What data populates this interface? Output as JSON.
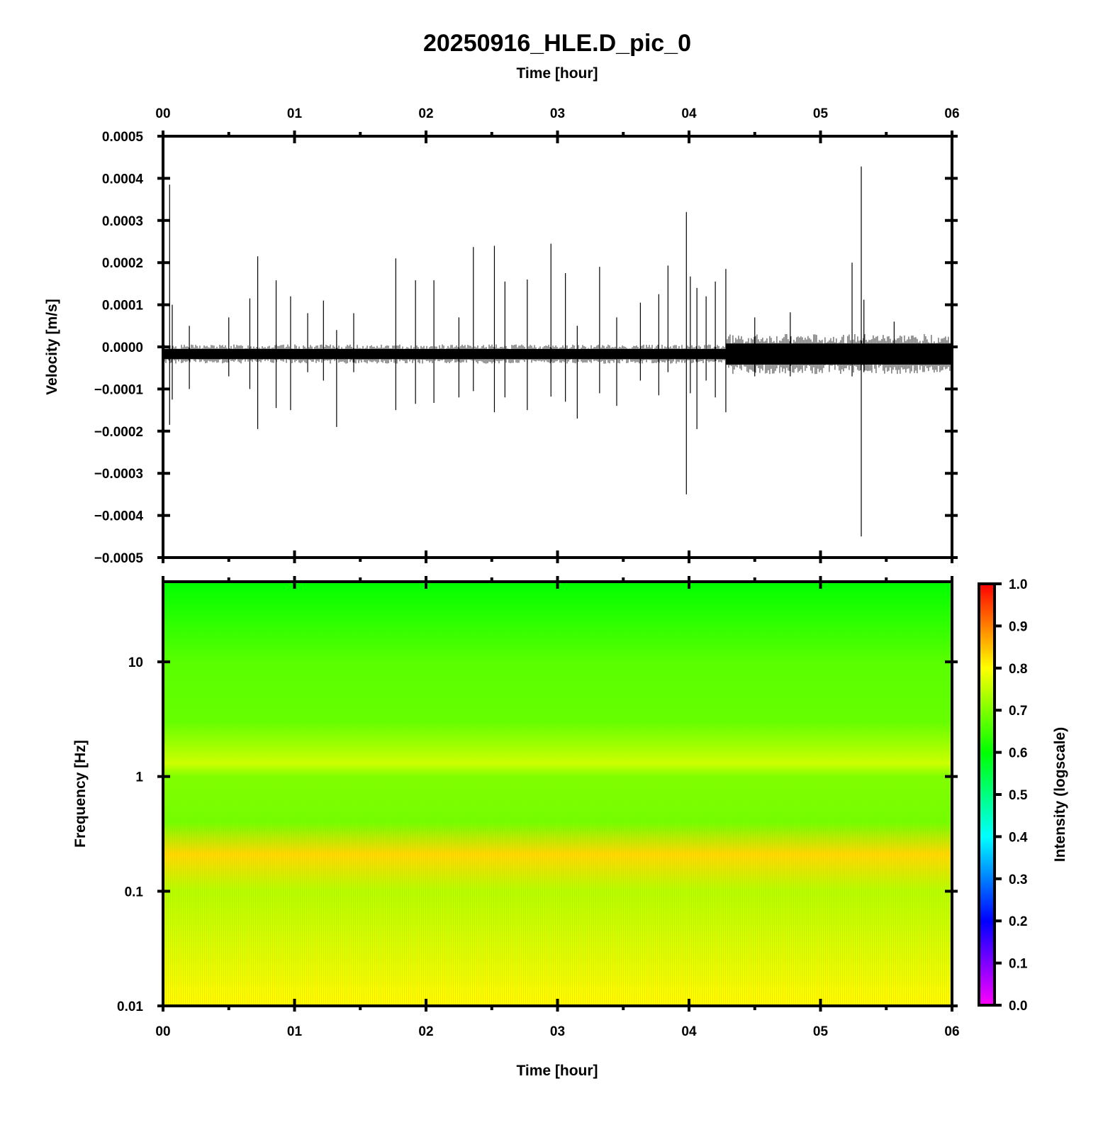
{
  "chart_data": [
    {
      "type": "line",
      "title": "20250916_HLE.D_pic_0",
      "xlabel": "Time [hour]",
      "ylabel": "Velocity [m/s]",
      "xlim": [
        0,
        6
      ],
      "ylim": [
        -0.0005,
        0.0005
      ],
      "x_ticks": [
        "00",
        "01",
        "02",
        "03",
        "04",
        "05",
        "06"
      ],
      "y_ticks": [
        "0.0005",
        "0.0004",
        "0.0003",
        "0.0002",
        "0.0001",
        "0.0000",
        "−0.0001",
        "−0.0002",
        "−0.0003",
        "−0.0004",
        "−0.0005"
      ],
      "baseline": -1.7e-05,
      "noise_envelope": [
        {
          "from_hour": 0.0,
          "to_hour": 4.28,
          "amplitude": 1.2e-05
        },
        {
          "from_hour": 4.28,
          "to_hour": 6.0,
          "amplitude": 2.5e-05
        }
      ],
      "spikes": [
        {
          "t": 0.05,
          "max": 0.000385,
          "min": -0.000185
        },
        {
          "t": 0.07,
          "max": 0.0001,
          "min": -0.000125
        },
        {
          "t": 0.2,
          "max": 5e-05,
          "min": -0.0001
        },
        {
          "t": 0.5,
          "max": 7e-05,
          "min": -7e-05
        },
        {
          "t": 0.66,
          "max": 0.000115,
          "min": -0.0001
        },
        {
          "t": 0.72,
          "max": 0.000215,
          "min": -0.000195
        },
        {
          "t": 0.86,
          "max": 0.000158,
          "min": -0.000145
        },
        {
          "t": 0.97,
          "max": 0.00012,
          "min": -0.00015
        },
        {
          "t": 1.1,
          "max": 8e-05,
          "min": -6e-05
        },
        {
          "t": 1.22,
          "max": 0.00011,
          "min": -8e-05
        },
        {
          "t": 1.32,
          "max": 4e-05,
          "min": -0.00019
        },
        {
          "t": 1.45,
          "max": 8e-05,
          "min": -6e-05
        },
        {
          "t": 1.77,
          "max": 0.00021,
          "min": -0.00015
        },
        {
          "t": 1.92,
          "max": 0.000158,
          "min": -0.000135
        },
        {
          "t": 2.06,
          "max": 0.000158,
          "min": -0.000133
        },
        {
          "t": 2.25,
          "max": 7e-05,
          "min": -0.00012
        },
        {
          "t": 2.36,
          "max": 0.000237,
          "min": -0.000105
        },
        {
          "t": 2.52,
          "max": 0.00024,
          "min": -0.000155
        },
        {
          "t": 2.6,
          "max": 0.000155,
          "min": -0.00012
        },
        {
          "t": 2.77,
          "max": 0.00016,
          "min": -0.00015
        },
        {
          "t": 2.95,
          "max": 0.000245,
          "min": -0.000118
        },
        {
          "t": 3.06,
          "max": 0.000175,
          "min": -0.00013
        },
        {
          "t": 3.15,
          "max": 5e-05,
          "min": -0.00017
        },
        {
          "t": 3.32,
          "max": 0.00019,
          "min": -0.00011
        },
        {
          "t": 3.45,
          "max": 7e-05,
          "min": -0.00014
        },
        {
          "t": 3.63,
          "max": 0.000105,
          "min": -8e-05
        },
        {
          "t": 3.77,
          "max": 0.000125,
          "min": -0.000115
        },
        {
          "t": 3.84,
          "max": 0.000193,
          "min": -6e-05
        },
        {
          "t": 3.98,
          "max": 0.00032,
          "min": -0.00035
        },
        {
          "t": 4.01,
          "max": 0.000167,
          "min": -0.00011
        },
        {
          "t": 4.06,
          "max": 0.00014,
          "min": -0.000195
        },
        {
          "t": 4.13,
          "max": 0.00012,
          "min": -8e-05
        },
        {
          "t": 4.2,
          "max": 0.000155,
          "min": -0.00012
        },
        {
          "t": 4.28,
          "max": 0.000185,
          "min": -0.000155
        },
        {
          "t": 4.5,
          "max": 7e-05,
          "min": -7e-05
        },
        {
          "t": 4.77,
          "max": 8.2e-05,
          "min": -7e-05
        },
        {
          "t": 5.24,
          "max": 0.0002,
          "min": -7e-05
        },
        {
          "t": 5.31,
          "max": 0.000428,
          "min": -0.00045
        },
        {
          "t": 5.33,
          "max": 0.000112,
          "min": -6e-05
        },
        {
          "t": 5.56,
          "max": 6e-05,
          "min": -4e-05
        }
      ]
    },
    {
      "type": "heatmap",
      "xlabel": "Time [hour]",
      "ylabel": "Frequency [Hz]",
      "xlim": [
        0,
        6
      ],
      "ylim": [
        0.01,
        50
      ],
      "yscale": "log",
      "x_ticks": [
        "00",
        "01",
        "02",
        "03",
        "04",
        "05",
        "06"
      ],
      "y_ticks": [
        "10",
        "1",
        "0.1",
        "0.01"
      ],
      "y_tick_values": [
        10,
        1,
        0.1,
        0.01
      ],
      "colorbar": {
        "label": "Intensity (logscale)",
        "range": [
          0,
          1
        ],
        "ticks": [
          "0.0",
          "0.1",
          "0.2",
          "0.3",
          "0.4",
          "0.5",
          "0.6",
          "0.7",
          "0.8",
          "0.9",
          "1.0"
        ],
        "colors": [
          "#ff00ff",
          "#0000ff",
          "#00ffff",
          "#00ff00",
          "#ffff00",
          "#ff0000"
        ]
      },
      "intensity_profile": [
        {
          "freq_hz": 50,
          "intensity": 0.6
        },
        {
          "freq_hz": 10,
          "intensity": 0.67
        },
        {
          "freq_hz": 3,
          "intensity": 0.68
        },
        {
          "freq_hz": 1.3,
          "intensity": 0.76
        },
        {
          "freq_hz": 1,
          "intensity": 0.7
        },
        {
          "freq_hz": 0.4,
          "intensity": 0.69
        },
        {
          "freq_hz": 0.21,
          "intensity": 0.83
        },
        {
          "freq_hz": 0.1,
          "intensity": 0.74
        },
        {
          "freq_hz": 0.03,
          "intensity": 0.77
        },
        {
          "freq_hz": 0.01,
          "intensity": 0.8
        }
      ]
    }
  ]
}
